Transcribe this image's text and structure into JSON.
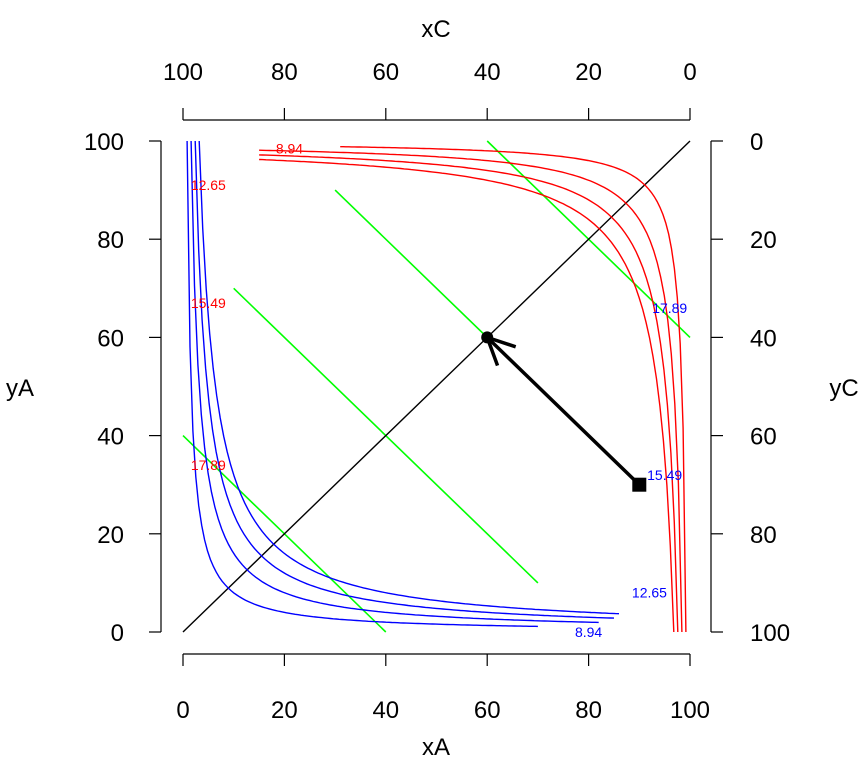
{
  "chart_data": {
    "type": "line",
    "axes": {
      "bottom": {
        "label": "xA",
        "range": [
          0,
          100
        ],
        "ticks": [
          "0",
          "20",
          "40",
          "60",
          "80",
          "100"
        ]
      },
      "left": {
        "label": "yA",
        "range": [
          0,
          100
        ],
        "ticks": [
          "0",
          "20",
          "40",
          "60",
          "80",
          "100"
        ]
      },
      "top": {
        "label": "xC",
        "range": [
          100,
          0
        ],
        "ticks": [
          "100",
          "80",
          "60",
          "40",
          "20",
          "0"
        ]
      },
      "right": {
        "label": "yC",
        "range": [
          0,
          100
        ],
        "ticks": [
          "0",
          "20",
          "40",
          "60",
          "80",
          "100"
        ]
      }
    },
    "grid": false,
    "colors": {
      "indifference_A": "#0000ff",
      "indifference_C": "#ff0000",
      "tangent": "#00ff00",
      "contract_curve": "#000000",
      "arrow": "#000000"
    },
    "blue_curves": [
      {
        "label": "8.94",
        "label_at": [
          80,
          0
        ]
      },
      {
        "label": "12.65",
        "label_at": [
          92,
          8
        ]
      },
      {
        "label": "15.49",
        "label_at": [
          95,
          32
        ]
      },
      {
        "label": "17.89",
        "label_at": [
          96,
          66
        ]
      }
    ],
    "red_curves": [
      {
        "label": "8.94",
        "label_at": [
          21,
          98.5
        ]
      },
      {
        "label": "12.65",
        "label_at": [
          5,
          91
        ]
      },
      {
        "label": "15.49",
        "label_at": [
          5,
          67
        ]
      },
      {
        "label": "17.89",
        "label_at": [
          5,
          34
        ]
      }
    ],
    "tangent_segments": [
      [
        [
          0,
          40
        ],
        [
          40,
          0
        ]
      ],
      [
        [
          10,
          70
        ],
        [
          70,
          10
        ]
      ],
      [
        [
          30,
          90
        ],
        [
          90,
          30
        ]
      ],
      [
        [
          60,
          100
        ],
        [
          100,
          60
        ]
      ]
    ],
    "contract_curve": [
      [
        0,
        0
      ],
      [
        100,
        100
      ]
    ],
    "arrow": {
      "from": [
        90,
        30
      ],
      "to": [
        60,
        60
      ]
    },
    "points": [
      {
        "marker": "square",
        "x": 90,
        "y": 30
      },
      {
        "marker": "circle",
        "x": 60,
        "y": 60
      }
    ]
  }
}
